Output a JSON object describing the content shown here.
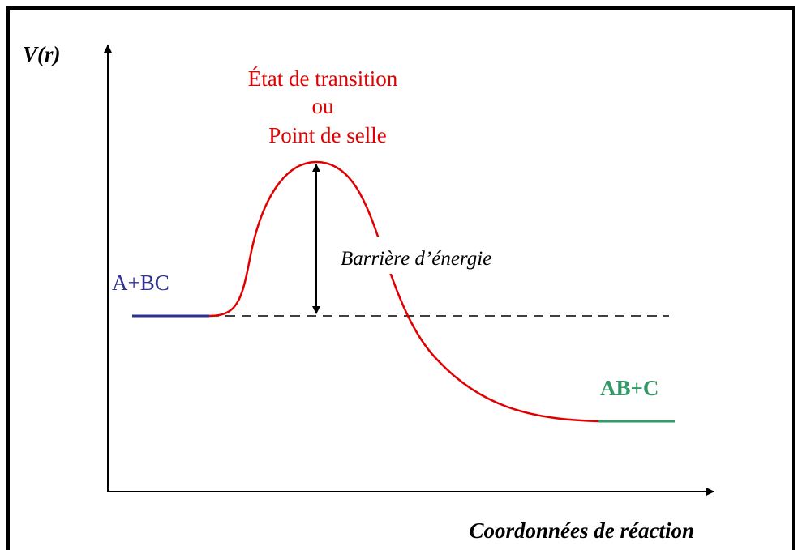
{
  "y_axis_label": "V(r)",
  "x_axis_label": "Coordonnées de réaction",
  "transition_state": {
    "line1": "État de transition",
    "line2": "ou",
    "line3": "Point de selle"
  },
  "barrier_label": "Barrière d’énergie",
  "reactants": "A+BC",
  "products": "AB+C"
}
